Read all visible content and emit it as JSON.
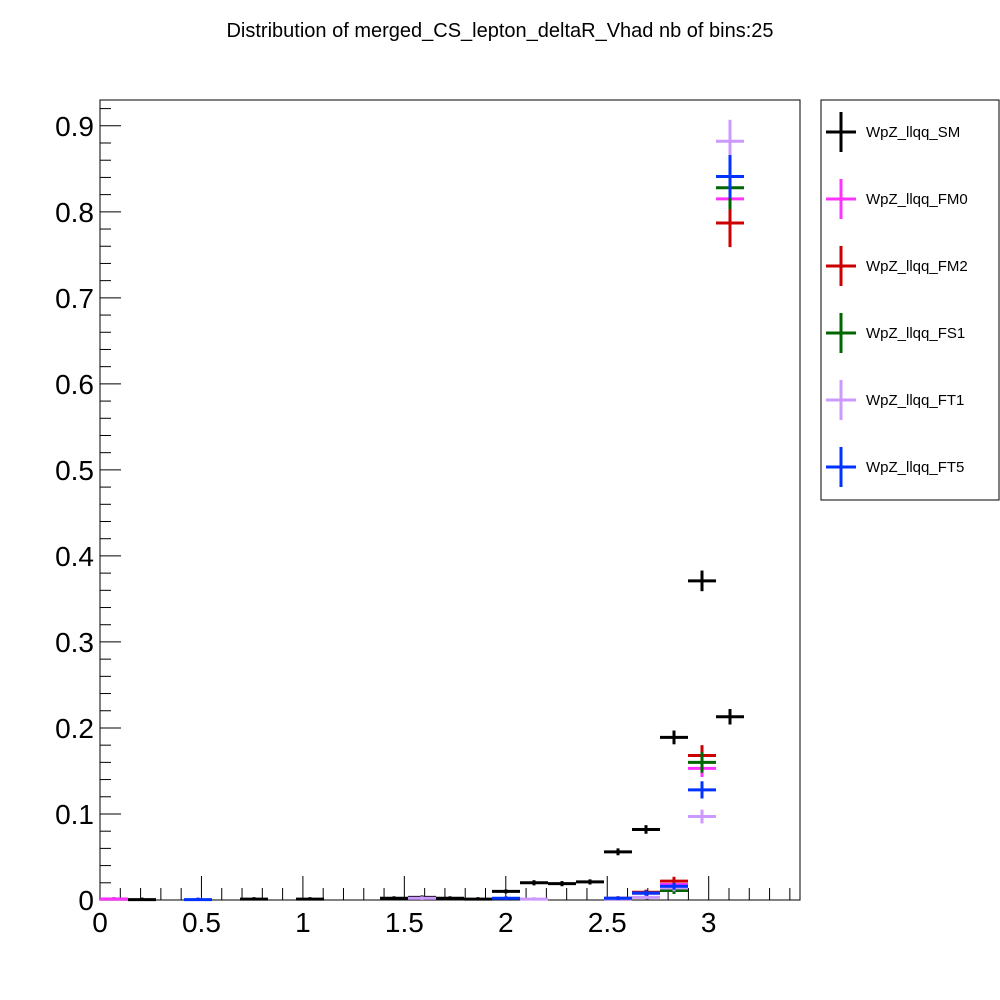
{
  "chart_data": {
    "type": "scatter",
    "title": "Distribution of merged_CS_lepton_deltaR_Vhad nb of bins:25",
    "xlabel": "",
    "ylabel": "",
    "xlim": [
      0,
      3.45
    ],
    "ylim": [
      0,
      0.93
    ],
    "bin_width": 0.138,
    "x_ticks": [
      0,
      0.5,
      1,
      1.5,
      2,
      2.5,
      3
    ],
    "x_tick_labels": [
      "0",
      "0.5",
      "1",
      "1.5",
      "2",
      "2.5",
      "3"
    ],
    "y_ticks": [
      0,
      0.1,
      0.2,
      0.3,
      0.4,
      0.5,
      0.6,
      0.7,
      0.8,
      0.9
    ],
    "y_tick_labels": [
      "0",
      "0.1",
      "0.2",
      "0.3",
      "0.4",
      "0.5",
      "0.6",
      "0.7",
      "0.8",
      "0.9"
    ],
    "grid": false,
    "legend_position": "right",
    "series": [
      {
        "name": "WpZ_llqq_SM",
        "color": "#000000",
        "points": [
          {
            "x": 0.069,
            "y": 0.001,
            "err": 0.0005
          },
          {
            "x": 0.207,
            "y": 0.0005,
            "err": 0.0003
          },
          {
            "x": 0.759,
            "y": 0.001,
            "err": 0.0005
          },
          {
            "x": 1.035,
            "y": 0.001,
            "err": 0.0005
          },
          {
            "x": 1.449,
            "y": 0.002,
            "err": 0.001
          },
          {
            "x": 1.587,
            "y": 0.003,
            "err": 0.001
          },
          {
            "x": 1.725,
            "y": 0.002,
            "err": 0.001
          },
          {
            "x": 1.863,
            "y": 0.001,
            "err": 0.001
          },
          {
            "x": 2.001,
            "y": 0.01,
            "err": 0.002
          },
          {
            "x": 2.139,
            "y": 0.02,
            "err": 0.003
          },
          {
            "x": 2.277,
            "y": 0.019,
            "err": 0.003
          },
          {
            "x": 2.415,
            "y": 0.021,
            "err": 0.003
          },
          {
            "x": 2.553,
            "y": 0.056,
            "err": 0.004
          },
          {
            "x": 2.691,
            "y": 0.082,
            "err": 0.005
          },
          {
            "x": 2.829,
            "y": 0.189,
            "err": 0.008
          },
          {
            "x": 2.967,
            "y": 0.371,
            "err": 0.012
          },
          {
            "x": 3.105,
            "y": 0.213,
            "err": 0.009
          }
        ]
      },
      {
        "name": "WpZ_llqq_FM0",
        "color": "#ff33ff",
        "points": [
          {
            "x": 0.069,
            "y": 0.001,
            "err": 0.001
          },
          {
            "x": 2.553,
            "y": 0.001,
            "err": 0.001
          },
          {
            "x": 2.691,
            "y": 0.008,
            "err": 0.003
          },
          {
            "x": 2.829,
            "y": 0.018,
            "err": 0.004
          },
          {
            "x": 2.967,
            "y": 0.153,
            "err": 0.01
          },
          {
            "x": 3.105,
            "y": 0.815,
            "err": 0.02
          }
        ]
      },
      {
        "name": "WpZ_llqq_FM2",
        "color": "#cc0000",
        "points": [
          {
            "x": 2.553,
            "y": 0.002,
            "err": 0.001
          },
          {
            "x": 2.691,
            "y": 0.009,
            "err": 0.003
          },
          {
            "x": 2.829,
            "y": 0.022,
            "err": 0.005
          },
          {
            "x": 2.967,
            "y": 0.168,
            "err": 0.012
          },
          {
            "x": 3.105,
            "y": 0.787,
            "err": 0.028
          }
        ]
      },
      {
        "name": "WpZ_llqq_FS1",
        "color": "#006600",
        "points": [
          {
            "x": 2.553,
            "y": 0.001,
            "err": 0.001
          },
          {
            "x": 2.691,
            "y": 0.008,
            "err": 0.003
          },
          {
            "x": 2.829,
            "y": 0.011,
            "err": 0.004
          },
          {
            "x": 2.967,
            "y": 0.16,
            "err": 0.012
          },
          {
            "x": 3.105,
            "y": 0.828,
            "err": 0.025
          }
        ]
      },
      {
        "name": "WpZ_llqq_FT1",
        "color": "#cc99ff",
        "points": [
          {
            "x": 1.587,
            "y": 0.002,
            "err": 0.001
          },
          {
            "x": 2.139,
            "y": 0.001,
            "err": 0.001
          },
          {
            "x": 2.553,
            "y": 0.001,
            "err": 0.001
          },
          {
            "x": 2.691,
            "y": 0.003,
            "err": 0.002
          },
          {
            "x": 2.829,
            "y": 0.014,
            "err": 0.004
          },
          {
            "x": 2.967,
            "y": 0.097,
            "err": 0.008
          },
          {
            "x": 3.105,
            "y": 0.882,
            "err": 0.025
          }
        ]
      },
      {
        "name": "WpZ_llqq_FT5",
        "color": "#0033ff",
        "points": [
          {
            "x": 0.483,
            "y": 0.0005,
            "err": 0.0005
          },
          {
            "x": 2.001,
            "y": 0.002,
            "err": 0.001
          },
          {
            "x": 2.553,
            "y": 0.002,
            "err": 0.001
          },
          {
            "x": 2.691,
            "y": 0.008,
            "err": 0.003
          },
          {
            "x": 2.829,
            "y": 0.016,
            "err": 0.004
          },
          {
            "x": 2.967,
            "y": 0.128,
            "err": 0.01
          },
          {
            "x": 3.105,
            "y": 0.841,
            "err": 0.025
          }
        ]
      }
    ]
  }
}
